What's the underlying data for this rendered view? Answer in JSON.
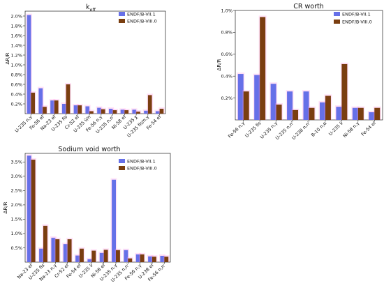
{
  "chart_data": [
    {
      "type": "bar",
      "title": "k",
      "title_subscript": "eff",
      "xlabel": "",
      "ylabel": "ΔR/R",
      "ylim": [
        0,
        2.1
      ],
      "yticks": [
        0.2,
        0.4,
        0.6,
        0.8,
        1.0,
        1.2,
        1.4,
        1.6,
        1.8,
        2.0
      ],
      "ytick_labels": [
        "0.2%",
        "0.4%",
        "0.6%",
        "0.8%",
        "1.0%",
        "1.2%",
        "1.4%",
        "1.6%",
        "1.8%",
        "2.0%"
      ],
      "categories": [
        "U-235 n,γ",
        "Fe-56 el",
        "Na-23 el",
        "U-235 fis",
        "Cr-52 el",
        "U-235 ν̄/n",
        "Fe-56 n,γ",
        "U-235 n,n'",
        "Ni-58 el",
        "U-235 χ",
        "U-235 fis/n,γ",
        "Fe-54 el"
      ],
      "series": [
        {
          "name": "ENDF/B-VII.1",
          "values": [
            2.02,
            0.52,
            0.27,
            0.2,
            0.17,
            0.15,
            0.12,
            0.1,
            0.08,
            0.08,
            0.06,
            0.05
          ]
        },
        {
          "name": "ENDF/B-VIII.0",
          "values": [
            0.43,
            0.14,
            0.27,
            0.6,
            0.17,
            0.05,
            0.09,
            0.07,
            0.07,
            0.04,
            0.38,
            0.1
          ]
        }
      ],
      "legend": "top-right",
      "grid": false
    },
    {
      "type": "bar",
      "title": "CR worth",
      "xlabel": "",
      "ylabel": "ΔR/R",
      "ylim": [
        0,
        1.0
      ],
      "yticks": [
        0.2,
        0.4,
        0.6,
        0.8,
        1.0
      ],
      "ytick_labels": [
        "0.2%",
        "0.4%",
        "0.6%",
        "0.8%",
        "1.0%"
      ],
      "categories": [
        "Fe-56 n,γ",
        "U-235 fis",
        "U-235 n,γ",
        "U-235 n,n'",
        "U-238 n,n'",
        "B-10 n,α",
        "U-235 ν̄",
        "Ni-58 n,γ",
        "Fe-54 el"
      ],
      "series": [
        {
          "name": "ENDF/B-VII.1",
          "values": [
            0.42,
            0.41,
            0.33,
            0.26,
            0.26,
            0.16,
            0.12,
            0.11,
            0.07
          ]
        },
        {
          "name": "ENDF/B-VIII.0",
          "values": [
            0.26,
            0.94,
            0.14,
            0.09,
            0.11,
            0.22,
            0.51,
            0.11,
            0.11
          ]
        }
      ],
      "legend": "top-right",
      "grid": false
    },
    {
      "type": "bar",
      "title": "Sodium void worth",
      "xlabel": "",
      "ylabel": "ΔR/R",
      "ylim": [
        0,
        3.8
      ],
      "yticks": [
        0.5,
        1.0,
        1.5,
        2.0,
        2.5,
        3.0,
        3.5
      ],
      "ytick_labels": [
        "0.5%",
        "1.0%",
        "1.5%",
        "2.0%",
        "2.5%",
        "3.0%",
        "3.5%"
      ],
      "categories": [
        "Na-23 el",
        "U-235 fis",
        "Na-23 n,γ",
        "Cr-52 el",
        "Fe-54 el",
        "U-235 ν̄",
        "Ni-58 el",
        "U-235 n,γ",
        "U-235 n,n'",
        "Fe-56 n,γ",
        "U-238 el",
        "Fe-56 n,n'"
      ],
      "series": [
        {
          "name": "ENDF/B-VII.1",
          "values": [
            3.72,
            0.47,
            0.85,
            0.63,
            0.23,
            0.1,
            0.32,
            2.88,
            0.42,
            0.27,
            0.2,
            0.22
          ]
        },
        {
          "name": "ENDF/B-VIII.0",
          "values": [
            3.58,
            1.27,
            0.8,
            0.8,
            0.47,
            0.4,
            0.43,
            0.42,
            0.13,
            0.27,
            0.19,
            0.19
          ]
        }
      ],
      "legend": "top-right",
      "grid": false
    }
  ],
  "colors": {
    "vii1": "#6670e8",
    "viii0": "#7a3e10",
    "vii1_heavy": "#4a80e8",
    "viii0_heavy": "#b0301a",
    "halo": "#ff8ee2",
    "axis": "#222222"
  }
}
